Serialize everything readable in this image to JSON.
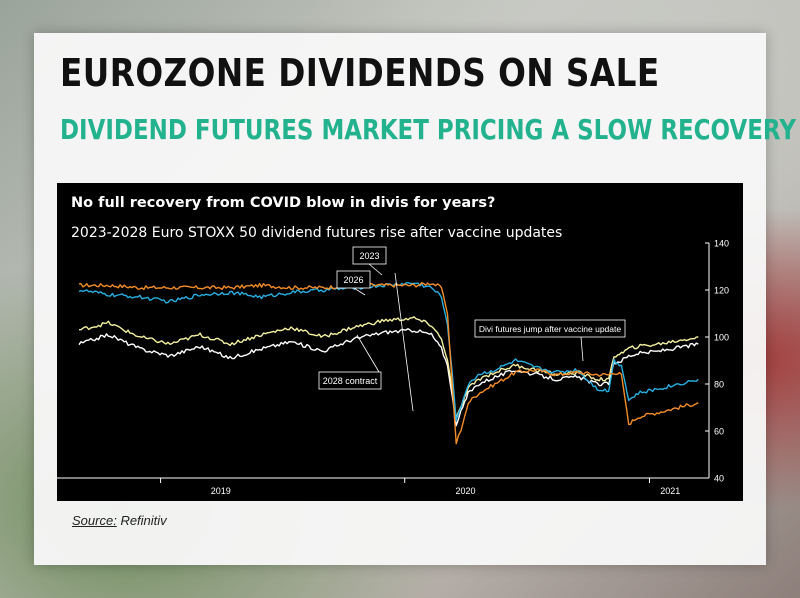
{
  "header": {
    "title": "EUROZONE DIVIDENDS ON SALE",
    "subtitle": "DIVIDEND FUTURES MARKET PRICING A SLOW RECOVERY"
  },
  "source": {
    "label": "Source:",
    "name": "Refinitiv"
  },
  "colors": {
    "2023": "#f28c28",
    "2026": "#29aee0",
    "2028": "#ffffff",
    "yellow_series": "#f4f1a0",
    "subtitle": "#23b28e"
  },
  "chart_data": {
    "type": "line",
    "title": "No full recovery from COVID blow in divis for years?",
    "subtitle": "2023-2028 Euro STOXX 50 dividend futures rise after vaccine updates",
    "xlabel": "",
    "ylabel": "",
    "xlim": [
      "2018-09-01",
      "2021-03-31"
    ],
    "ylim": [
      40,
      140
    ],
    "y_ticks": [
      40,
      60,
      80,
      100,
      120,
      140
    ],
    "x_ticks": [
      {
        "label": "2019",
        "date": "2019-04-01"
      },
      {
        "label": "2020",
        "date": "2020-04-01"
      },
      {
        "label": "2021",
        "date": "2021-02-01"
      }
    ],
    "y_axis_position": "right",
    "grid": false,
    "legend": "none",
    "series": [
      {
        "name": "2023",
        "color": "#f28c28",
        "x": [
          "2018-09-01",
          "2018-10-15",
          "2018-12-01",
          "2019-01-15",
          "2019-03-01",
          "2019-04-15",
          "2019-06-01",
          "2019-07-15",
          "2019-09-01",
          "2019-10-15",
          "2019-12-01",
          "2020-01-15",
          "2020-02-10",
          "2020-02-25",
          "2020-03-05",
          "2020-03-12",
          "2020-03-18",
          "2020-03-25",
          "2020-04-05",
          "2020-04-20",
          "2020-05-15",
          "2020-06-15",
          "2020-07-15",
          "2020-08-15",
          "2020-09-15",
          "2020-10-15",
          "2020-11-01",
          "2020-11-09",
          "2020-11-20",
          "2020-12-01",
          "2020-12-15",
          "2021-01-15",
          "2021-03-15"
        ],
        "y": [
          122,
          122,
          121,
          121,
          121,
          121,
          122,
          121,
          121,
          122,
          122,
          122,
          123,
          121,
          110,
          80,
          55,
          60,
          72,
          76,
          80,
          85,
          86,
          84,
          85,
          84,
          84,
          85,
          84,
          63,
          66,
          68,
          72
        ]
      },
      {
        "name": "2026",
        "color": "#29aee0",
        "x": [
          "2018-09-01",
          "2018-10-15",
          "2018-12-01",
          "2019-01-15",
          "2019-03-01",
          "2019-04-15",
          "2019-06-01",
          "2019-07-15",
          "2019-09-01",
          "2019-10-15",
          "2019-12-01",
          "2020-01-15",
          "2020-02-10",
          "2020-02-25",
          "2020-03-05",
          "2020-03-12",
          "2020-03-18",
          "2020-03-25",
          "2020-04-05",
          "2020-04-20",
          "2020-05-15",
          "2020-06-15",
          "2020-07-15",
          "2020-08-15",
          "2020-09-15",
          "2020-10-15",
          "2020-11-01",
          "2020-11-09",
          "2020-11-20",
          "2020-12-01",
          "2020-12-15",
          "2021-01-15",
          "2021-03-15"
        ],
        "y": [
          120,
          118,
          117,
          115,
          118,
          119,
          117,
          119,
          120,
          121,
          122,
          123,
          121,
          117,
          105,
          85,
          65,
          70,
          80,
          84,
          86,
          90,
          87,
          85,
          86,
          78,
          77,
          90,
          88,
          73,
          76,
          78,
          82
        ]
      },
      {
        "name": "2028 contract",
        "color": "#ffffff",
        "x": [
          "2018-09-01",
          "2018-10-15",
          "2018-12-01",
          "2019-01-15",
          "2019-03-01",
          "2019-04-15",
          "2019-06-01",
          "2019-07-15",
          "2019-09-01",
          "2019-10-15",
          "2019-12-01",
          "2020-01-15",
          "2020-02-10",
          "2020-02-25",
          "2020-03-05",
          "2020-03-12",
          "2020-03-18",
          "2020-03-25",
          "2020-04-05",
          "2020-04-20",
          "2020-05-15",
          "2020-06-15",
          "2020-07-15",
          "2020-08-15",
          "2020-09-15",
          "2020-10-15",
          "2020-11-01",
          "2020-11-09",
          "2020-11-20",
          "2020-12-01",
          "2020-12-15",
          "2021-01-15",
          "2021-03-15"
        ],
        "y": [
          97,
          101,
          95,
          92,
          96,
          91,
          95,
          98,
          94,
          99,
          102,
          103,
          101,
          95,
          88,
          75,
          63,
          68,
          76,
          80,
          83,
          86,
          84,
          82,
          83,
          80,
          80,
          89,
          90,
          92,
          93,
          94,
          97
        ]
      },
      {
        "name": "",
        "color": "#f4f1a0",
        "x": [
          "2018-09-01",
          "2018-10-15",
          "2018-12-01",
          "2019-01-15",
          "2019-03-01",
          "2019-04-15",
          "2019-06-01",
          "2019-07-15",
          "2019-09-01",
          "2019-10-15",
          "2019-12-01",
          "2020-01-15",
          "2020-02-10",
          "2020-02-25",
          "2020-03-05",
          "2020-03-12",
          "2020-03-18",
          "2020-03-25",
          "2020-04-05",
          "2020-04-20",
          "2020-05-15",
          "2020-06-15",
          "2020-07-15",
          "2020-08-15",
          "2020-09-15",
          "2020-10-15",
          "2020-11-01",
          "2020-11-09",
          "2020-11-20",
          "2020-12-01",
          "2020-12-15",
          "2021-01-15",
          "2021-03-15"
        ],
        "y": [
          103,
          106,
          100,
          97,
          101,
          97,
          101,
          104,
          100,
          104,
          107,
          108,
          105,
          99,
          90,
          78,
          65,
          70,
          78,
          82,
          85,
          88,
          86,
          84,
          85,
          82,
          82,
          92,
          93,
          95,
          96,
          97,
          100
        ]
      }
    ],
    "annotations": [
      {
        "text": "2023",
        "series": "2023"
      },
      {
        "text": "2026",
        "series": "2026"
      },
      {
        "text": "2028 contract",
        "series": "2028 contract"
      },
      {
        "text": "Divi futures jump after vaccine update"
      }
    ]
  }
}
